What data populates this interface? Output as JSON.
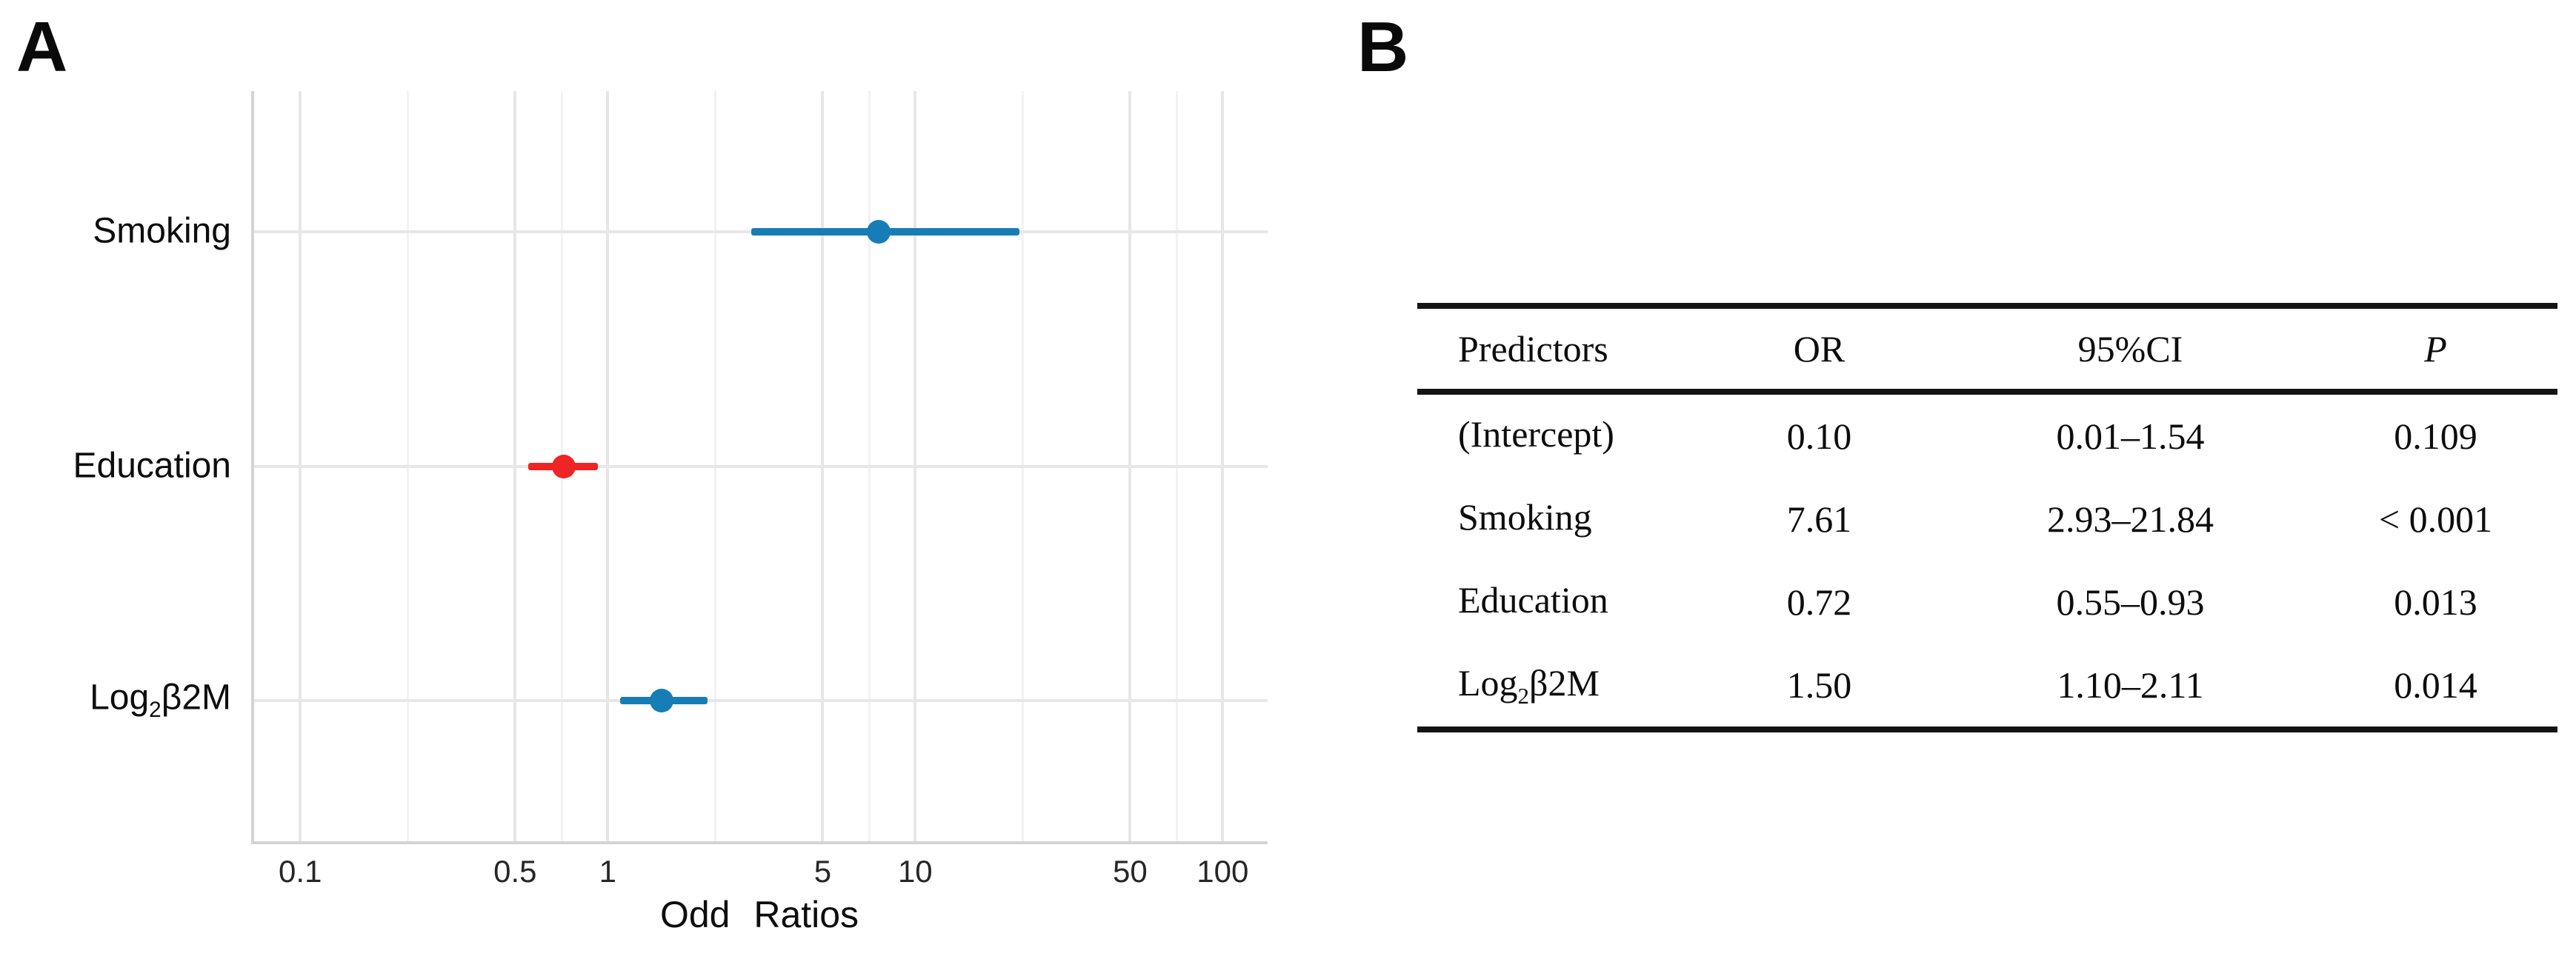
{
  "panels": {
    "a": {
      "label": "A"
    },
    "b": {
      "label": "B"
    }
  },
  "colors": {
    "blue": "#177db6",
    "red": "#ee2524",
    "grid_major": "#e6e6e6",
    "grid_minor": "#f2f2f2",
    "axis_line": "#d4d4d4",
    "table_rule": "#141414",
    "text": "#111111"
  },
  "chart_data": {
    "type": "scatter",
    "subtype": "forest-plot",
    "title": "",
    "xlabel": "Odd Ratios",
    "ylabel": "",
    "x_scale": "log10",
    "xlim": [
      0.0708,
      140
    ],
    "grid": true,
    "x_ticks": [
      {
        "v": 0.1,
        "label": "0.1"
      },
      {
        "v": 0.5,
        "label": "0.5"
      },
      {
        "v": 1,
        "label": "1"
      },
      {
        "v": 5,
        "label": "5"
      },
      {
        "v": 10,
        "label": "10"
      },
      {
        "v": 50,
        "label": "50"
      },
      {
        "v": 100,
        "label": "100"
      }
    ],
    "x_minor_grid": [
      0.2236,
      0.7071,
      2.2361,
      7.0711,
      22.3607,
      70.7107
    ],
    "categories": [
      "Smoking",
      "Education",
      "Log₂β2M"
    ],
    "rows": [
      {
        "label_pre": "Smoking",
        "label_sub": "",
        "label_post": "",
        "or": 7.61,
        "ci_low": 2.93,
        "ci_high": 21.84,
        "color": "#177db6"
      },
      {
        "label_pre": "Education",
        "label_sub": "",
        "label_post": "",
        "or": 0.72,
        "ci_low": 0.55,
        "ci_high": 0.93,
        "color": "#ee2524"
      },
      {
        "label_pre": "Log",
        "label_sub": "2",
        "label_post": "β2M",
        "or": 1.5,
        "ci_low": 1.1,
        "ci_high": 2.11,
        "color": "#177db6"
      }
    ]
  },
  "table": {
    "headers": [
      "Predictors",
      "OR",
      "95%CI",
      "P"
    ],
    "rows": [
      {
        "pre": "(Intercept)",
        "sub": "",
        "post": "",
        "or": "0.10",
        "ci": "0.01–1.54",
        "p": "0.109"
      },
      {
        "pre": "Smoking",
        "sub": "",
        "post": "",
        "or": "7.61",
        "ci": "2.93–21.84",
        "p": "< 0.001"
      },
      {
        "pre": "Education",
        "sub": "",
        "post": "",
        "or": "0.72",
        "ci": "0.55–0.93",
        "p": "0.013"
      },
      {
        "pre": "Log",
        "sub": "2",
        "post": "β2M",
        "or": "1.50",
        "ci": "1.10–2.11",
        "p": "0.014"
      }
    ]
  }
}
